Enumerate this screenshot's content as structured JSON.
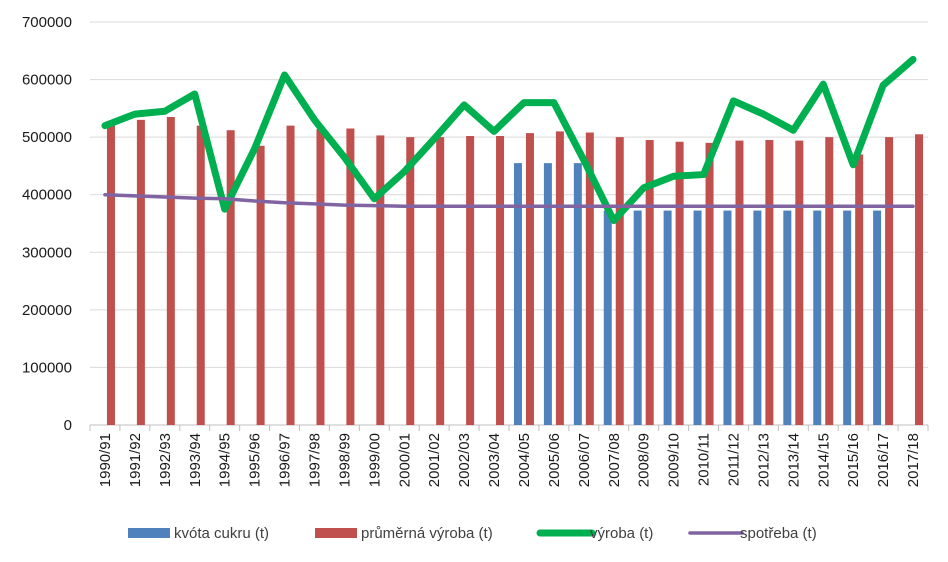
{
  "chart_data": {
    "type": "bar",
    "categories": [
      "1990/91",
      "1991/92",
      "1992/93",
      "1993/94",
      "1994/95",
      "1995/96",
      "1996/97",
      "1997/98",
      "1998/99",
      "1999/00",
      "2000/01",
      "2001/02",
      "2002/03",
      "2003/04",
      "2004/05",
      "2005/06",
      "2006/07",
      "2007/08",
      "2008/09",
      "2009/10",
      "2010/11",
      "2011/12",
      "2012/13",
      "2013/14",
      "2014/15",
      "2015/16",
      "2016/17",
      "2017/18"
    ],
    "ylim": [
      0,
      700000
    ],
    "yticks": [
      0,
      100000,
      200000,
      300000,
      400000,
      500000,
      600000,
      700000
    ],
    "ytick_labels": [
      "0",
      "100000",
      "200000",
      "300000",
      "400000",
      "500000",
      "600000",
      "700000"
    ],
    "grid": true,
    "legend_position": "bottom",
    "series": [
      {
        "name": "kvóta cukru (t)",
        "kind": "bar",
        "color": "#4f81bd",
        "values": [
          null,
          null,
          null,
          null,
          null,
          null,
          null,
          null,
          null,
          null,
          null,
          null,
          null,
          null,
          454862,
          454862,
          454862,
          372459,
          372459,
          372459,
          372459,
          372459,
          372459,
          372459,
          372459,
          372459,
          372459,
          null
        ]
      },
      {
        "name": "průměrná výroba (t)",
        "kind": "bar",
        "color": "#c0504d",
        "values": [
          523000,
          530000,
          535000,
          520000,
          512000,
          485000,
          520000,
          514000,
          515000,
          503000,
          500000,
          500000,
          502000,
          502000,
          507000,
          510000,
          508000,
          500000,
          495000,
          492000,
          490000,
          494000,
          495000,
          494000,
          500000,
          470000,
          500000,
          505000
        ]
      },
      {
        "name": "výroba (t)",
        "kind": "line",
        "color": "#00b050",
        "values": [
          520000,
          540000,
          545000,
          575000,
          375000,
          480000,
          608000,
          530000,
          465000,
          393000,
          440000,
          497000,
          556000,
          510000,
          560000,
          560000,
          460000,
          355000,
          412000,
          432000,
          435000,
          563000,
          540000,
          512000,
          592000,
          452000,
          590000,
          635000
        ]
      },
      {
        "name": "spotřeba (t)",
        "kind": "line",
        "color": "#8064a2",
        "values": [
          400000,
          398000,
          396000,
          394000,
          393000,
          389000,
          386000,
          384000,
          382000,
          381000,
          380000,
          380000,
          380000,
          380000,
          380000,
          380000,
          380000,
          380000,
          380000,
          380000,
          380000,
          380000,
          380000,
          380000,
          380000,
          380000,
          380000,
          380000
        ]
      }
    ]
  }
}
